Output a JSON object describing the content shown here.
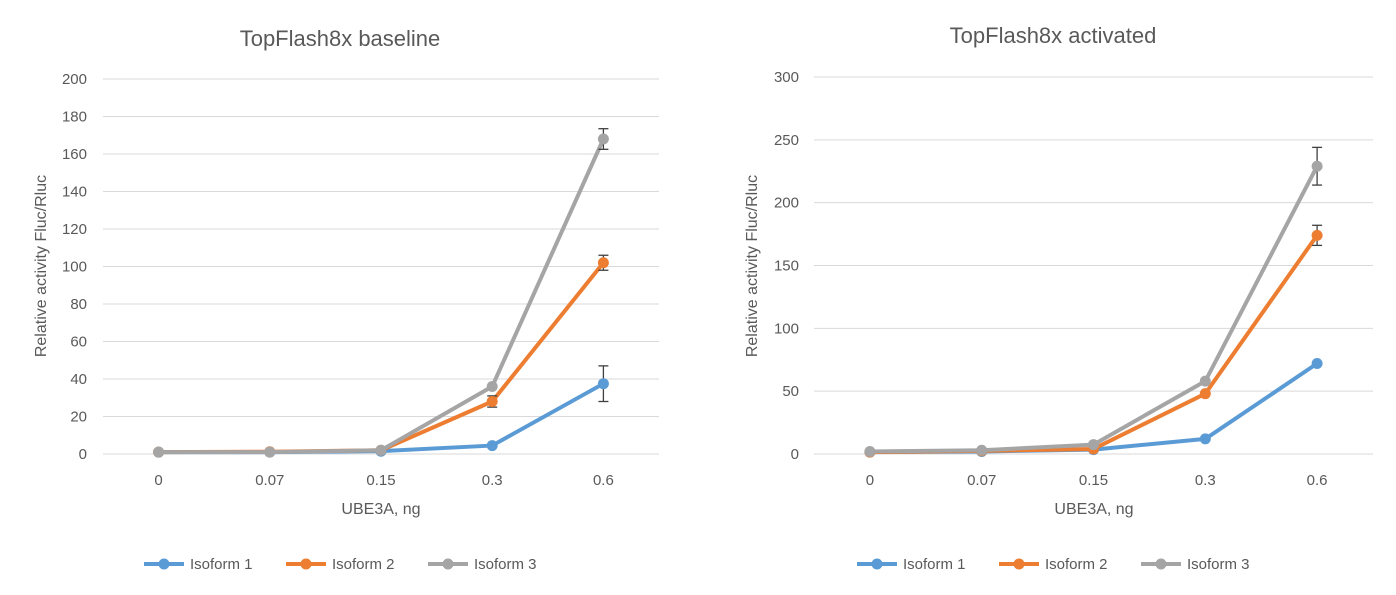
{
  "chart_data": [
    {
      "type": "line",
      "title": "TopFlash8x baseline",
      "xlabel": "UBE3A, ng",
      "ylabel": "Relative activity Fluc/Rluc",
      "categories": [
        "0",
        "0.07",
        "0.15",
        "0.3",
        "0.6"
      ],
      "ylim": [
        0,
        200
      ],
      "yticks": [
        0,
        20,
        40,
        60,
        80,
        100,
        120,
        140,
        160,
        180,
        200
      ],
      "grid": true,
      "legend": "bottom",
      "series": [
        {
          "name": "Isoform 1",
          "color": "#5b9bd5",
          "values": [
            1,
            1,
            1.5,
            4.5,
            37.5
          ],
          "error": [
            null,
            null,
            null,
            null,
            9.5
          ]
        },
        {
          "name": "Isoform 2",
          "color": "#ed7d31",
          "values": [
            1,
            1.2,
            2,
            28,
            102
          ],
          "error": [
            null,
            null,
            null,
            3,
            4
          ]
        },
        {
          "name": "Isoform 3",
          "color": "#a5a5a5",
          "values": [
            1,
            1,
            2,
            36,
            168
          ],
          "error": [
            null,
            null,
            null,
            null,
            5.5
          ]
        }
      ]
    },
    {
      "type": "line",
      "title": "TopFlash8x activated",
      "xlabel": "UBE3A, ng",
      "ylabel": "Relative activity Fluc/Rluc",
      "categories": [
        "0",
        "0.07",
        "0.15",
        "0.3",
        "0.6"
      ],
      "ylim": [
        0,
        300
      ],
      "yticks": [
        0,
        50,
        100,
        150,
        200,
        250,
        300
      ],
      "grid": true,
      "legend": "bottom",
      "series": [
        {
          "name": "Isoform 1",
          "color": "#5b9bd5",
          "values": [
            1.5,
            2,
            3.5,
            12,
            72
          ],
          "error": [
            null,
            null,
            null,
            null,
            null
          ]
        },
        {
          "name": "Isoform 2",
          "color": "#ed7d31",
          "values": [
            1.5,
            2.5,
            4,
            48,
            174
          ],
          "error": [
            null,
            null,
            null,
            null,
            8
          ]
        },
        {
          "name": "Isoform 3",
          "color": "#a5a5a5",
          "values": [
            2,
            3,
            7.5,
            58,
            229
          ],
          "error": [
            null,
            null,
            null,
            null,
            15
          ]
        }
      ]
    }
  ]
}
